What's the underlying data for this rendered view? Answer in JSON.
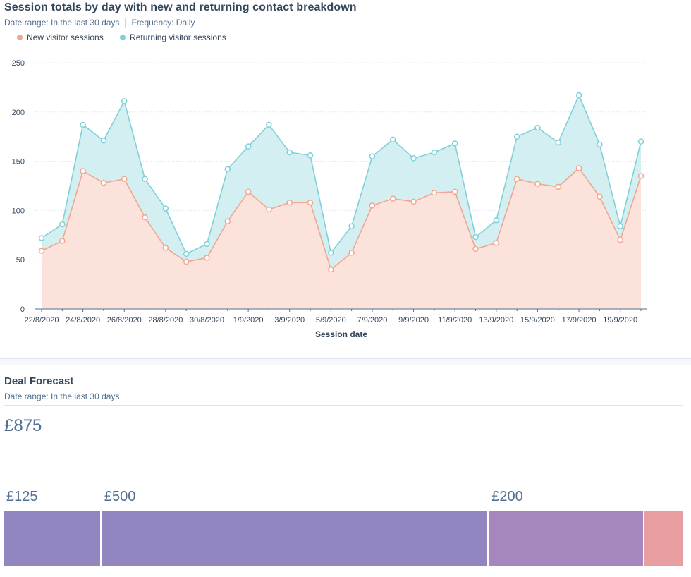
{
  "session_card": {
    "title": "Session totals by day with new and returning contact breakdown",
    "date_range": "Date range: In the last 30 days",
    "frequency": "Frequency: Daily",
    "legend": [
      {
        "label": "New visitor sessions",
        "color": "#f2a68f"
      },
      {
        "label": "Returning visitor sessions",
        "color": "#7fd1d8"
      }
    ]
  },
  "chart_data": {
    "type": "area",
    "stacked": true,
    "xlabel": "Session date",
    "ylabel": "",
    "ylim": [
      0,
      250
    ],
    "yticks": [
      0,
      50,
      100,
      150,
      200,
      250
    ],
    "grid": true,
    "legend_placement": "top-left",
    "x": [
      "22/8/2020",
      "23/8/2020",
      "24/8/2020",
      "25/8/2020",
      "26/8/2020",
      "27/8/2020",
      "28/8/2020",
      "29/8/2020",
      "30/8/2020",
      "31/8/2020",
      "1/9/2020",
      "2/9/2020",
      "3/9/2020",
      "4/9/2020",
      "5/9/2020",
      "6/9/2020",
      "7/9/2020",
      "8/9/2020",
      "9/9/2020",
      "10/9/2020",
      "11/9/2020",
      "12/9/2020",
      "13/9/2020",
      "14/9/2020",
      "15/9/2020",
      "16/9/2020",
      "17/9/2020",
      "18/9/2020",
      "19/9/2020",
      "20/9/2020"
    ],
    "xtick_labels": [
      "22/8/2020",
      "24/8/2020",
      "26/8/2020",
      "28/8/2020",
      "30/8/2020",
      "1/9/2020",
      "3/9/2020",
      "5/9/2020",
      "7/9/2020",
      "9/9/2020",
      "11/9/2020",
      "13/9/2020",
      "15/9/2020",
      "17/9/2020",
      "19/9/2020"
    ],
    "series": [
      {
        "name": "New visitor sessions",
        "color": "#f2a68f",
        "values": [
          59,
          69,
          140,
          128,
          132,
          93,
          62,
          48,
          52,
          89,
          119,
          101,
          108,
          108,
          40,
          57,
          105,
          112,
          109,
          118,
          119,
          61,
          67,
          132,
          127,
          124,
          143,
          114,
          70,
          135
        ]
      },
      {
        "name": "Returning visitor sessions",
        "color": "#7fd1d8",
        "values": [
          13,
          17,
          47,
          43,
          79,
          39,
          40,
          8,
          14,
          53,
          46,
          86,
          51,
          48,
          17,
          27,
          50,
          60,
          44,
          41,
          49,
          12,
          23,
          43,
          57,
          45,
          74,
          53,
          14,
          35
        ]
      }
    ]
  },
  "deal_card": {
    "title": "Deal Forecast",
    "date_range": "Date range: In the last 30 days",
    "total": "£875",
    "segments": [
      {
        "label": "£125",
        "value": 125,
        "color": "#9385bf"
      },
      {
        "label": "£500",
        "value": 500,
        "color": "#9385bf"
      },
      {
        "label": "£200",
        "value": 200,
        "color": "#a687bd"
      },
      {
        "label": "",
        "value": 50,
        "color": "#e89ea0"
      }
    ]
  }
}
